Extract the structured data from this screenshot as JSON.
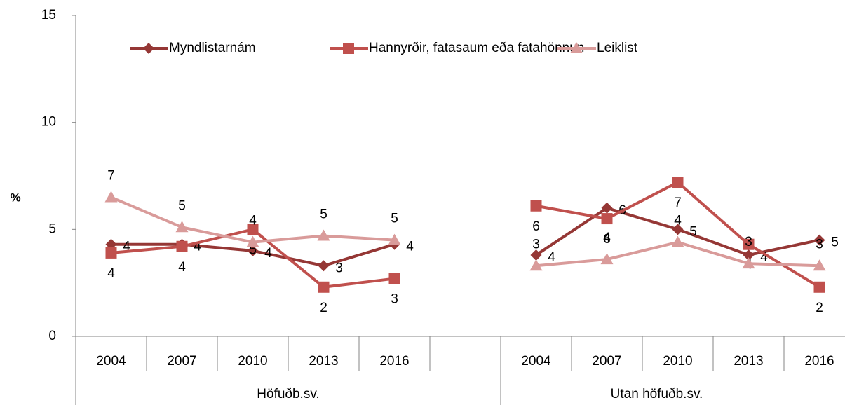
{
  "chart_data": {
    "type": "line",
    "y_label": "%",
    "categories": [
      "2004",
      "2007",
      "2010",
      "2013",
      "2016",
      null,
      "2004",
      "2007",
      "2010",
      "2013",
      "2016"
    ],
    "category_groups": [
      "Höfuðb.sv.",
      "Utan höfuðb.sv."
    ],
    "ylim": [
      0,
      15
    ],
    "yticks": [
      0,
      5,
      10,
      15
    ],
    "grid": false,
    "legend": "top",
    "series": [
      {
        "name": "Myndlistarnám",
        "color": "#953735",
        "marker": "diamond",
        "values": [
          4.3,
          4.3,
          4.0,
          3.3,
          4.3,
          null,
          3.8,
          6.0,
          5.0,
          3.8,
          4.5
        ],
        "value_labels": [
          "4",
          "4",
          "4",
          "3",
          "4",
          null,
          "4",
          "6",
          "5",
          "4",
          "5"
        ]
      },
      {
        "name": "Hannyrðir, fatasaum eða fatahönnun",
        "color": "#c0504d",
        "marker": "square",
        "values": [
          3.9,
          4.2,
          5.0,
          2.3,
          2.7,
          null,
          6.1,
          5.5,
          7.2,
          4.3,
          2.3
        ],
        "value_labels": [
          "4",
          "4",
          "5",
          "2",
          "3",
          null,
          "6",
          "6",
          "7",
          "4",
          "2"
        ]
      },
      {
        "name": "Leiklist",
        "color": "#d99b9a",
        "marker": "triangle",
        "values": [
          6.5,
          5.1,
          4.4,
          4.7,
          4.5,
          null,
          3.3,
          3.6,
          4.4,
          3.4,
          3.3
        ],
        "value_labels": [
          "7",
          "5",
          "4",
          "5",
          "5",
          null,
          "3",
          "4",
          "4",
          "3",
          "3"
        ]
      }
    ]
  }
}
